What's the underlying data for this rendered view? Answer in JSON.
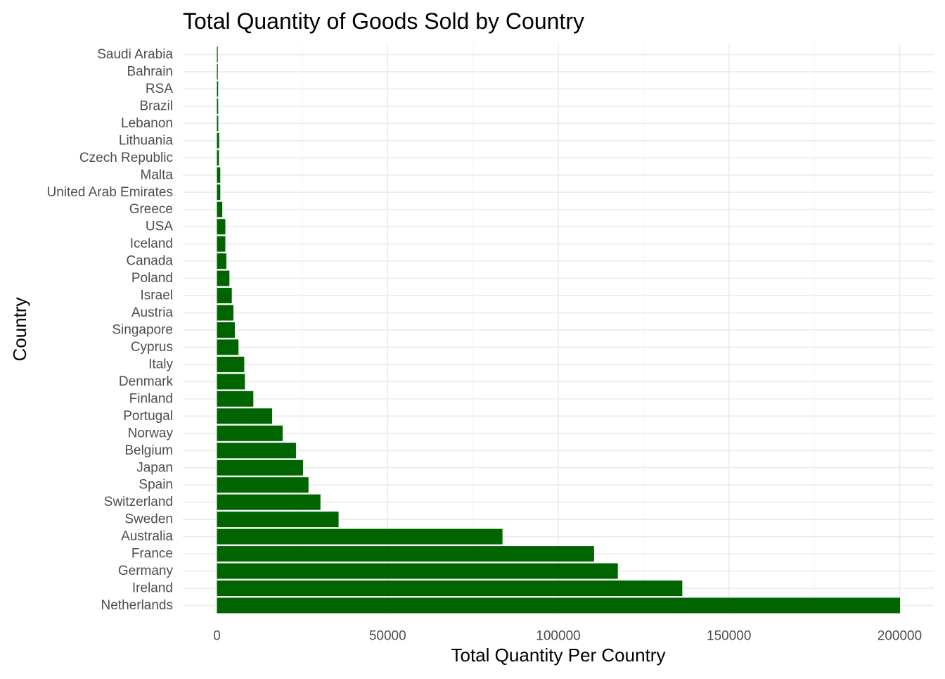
{
  "chart_data": {
    "type": "bar",
    "orientation": "horizontal",
    "title": "Total Quantity of Goods Sold by Country",
    "xlabel": "Total Quantity Per Country",
    "ylabel": "Country",
    "xlim": [
      -10000,
      210000
    ],
    "x_ticks": [
      0,
      50000,
      100000,
      150000,
      200000
    ],
    "x_tick_labels": [
      "0",
      "50000",
      "100000",
      "150000",
      "200000"
    ],
    "grid": true,
    "legend": "none",
    "bar_color": "#006400",
    "categories": [
      "Saudi Arabia",
      "Bahrain",
      "RSA",
      "Brazil",
      "Lebanon",
      "Lithuania",
      "Czech Republic",
      "Malta",
      "United Arab Emirates",
      "Greece",
      "USA",
      "Iceland",
      "Canada",
      "Poland",
      "Israel",
      "Austria",
      "Singapore",
      "Cyprus",
      "Italy",
      "Denmark",
      "Finland",
      "Portugal",
      "Norway",
      "Belgium",
      "Japan",
      "Spain",
      "Switzerland",
      "Sweden",
      "Australia",
      "France",
      "Germany",
      "Ireland",
      "Netherlands"
    ],
    "values": [
      75,
      260,
      352,
      356,
      386,
      652,
      592,
      970,
      982,
      1557,
      2458,
      2458,
      2763,
      3653,
      4353,
      4827,
      5234,
      6317,
      7999,
      8188,
      10666,
      16180,
      19247,
      23152,
      25218,
      26824,
      30325,
      35637,
      83653,
      110480,
      117448,
      136329,
      200128
    ]
  }
}
